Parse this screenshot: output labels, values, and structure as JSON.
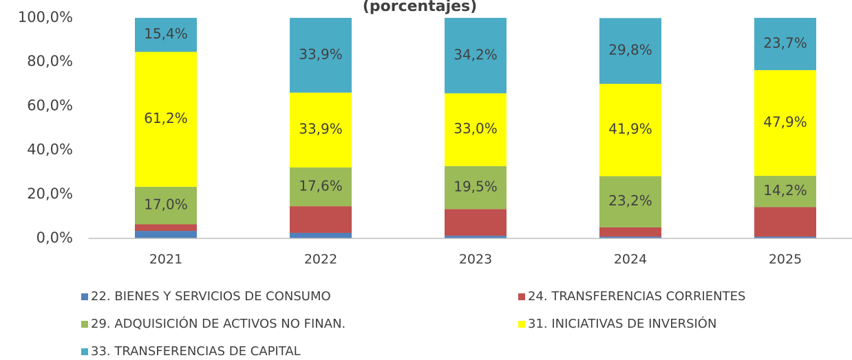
{
  "chart_data": {
    "type": "stacked_bar",
    "title": "(porcentajes)",
    "categories": [
      "2021",
      "2022",
      "2023",
      "2024",
      "2025"
    ],
    "series": [
      {
        "name": "22. BIENES Y SERVICIOS DE CONSUMO",
        "color": "#4f81bd",
        "values": [
          3.4,
          2.5,
          1.2,
          0.8,
          0.8
        ]
      },
      {
        "name": "24. TRANSFERENCIAS CORRIENTES",
        "color": "#c0504d",
        "values": [
          3.0,
          12.1,
          12.1,
          4.2,
          13.4
        ]
      },
      {
        "name": "29. ADQUISICIÓN DE ACTIVOS NO FINAN.",
        "color": "#9bbb59",
        "values": [
          17.0,
          17.6,
          19.5,
          23.2,
          14.2
        ],
        "value_labels": [
          "17,0%",
          "17,6%",
          "19,5%",
          "23,2%",
          "14,2%"
        ]
      },
      {
        "name": "31. INICIATIVAS DE INVERSIÓN",
        "color": "#ffff00",
        "values": [
          61.2,
          33.9,
          33.0,
          41.9,
          47.9
        ],
        "value_labels": [
          "61,2%",
          "33,9%",
          "33,0%",
          "41,9%",
          "47,9%"
        ]
      },
      {
        "name": "33. TRANSFERENCIAS DE CAPITAL",
        "color": "#4bacc6",
        "values": [
          15.4,
          33.9,
          34.2,
          29.8,
          23.7
        ],
        "value_labels": [
          "15,4%",
          "33,9%",
          "34,2%",
          "29,8%",
          "23,7%"
        ]
      }
    ],
    "ylim": [
      0,
      100
    ],
    "yticks": [
      {
        "value": 0,
        "label": "0,0%"
      },
      {
        "value": 20,
        "label": "20,0%"
      },
      {
        "value": 40,
        "label": "40,0%"
      },
      {
        "value": 60,
        "label": "60,0%"
      },
      {
        "value": 80,
        "label": "80,0%"
      },
      {
        "value": 100,
        "label": "100,0%"
      }
    ],
    "grid": false,
    "legend": "bottom"
  }
}
